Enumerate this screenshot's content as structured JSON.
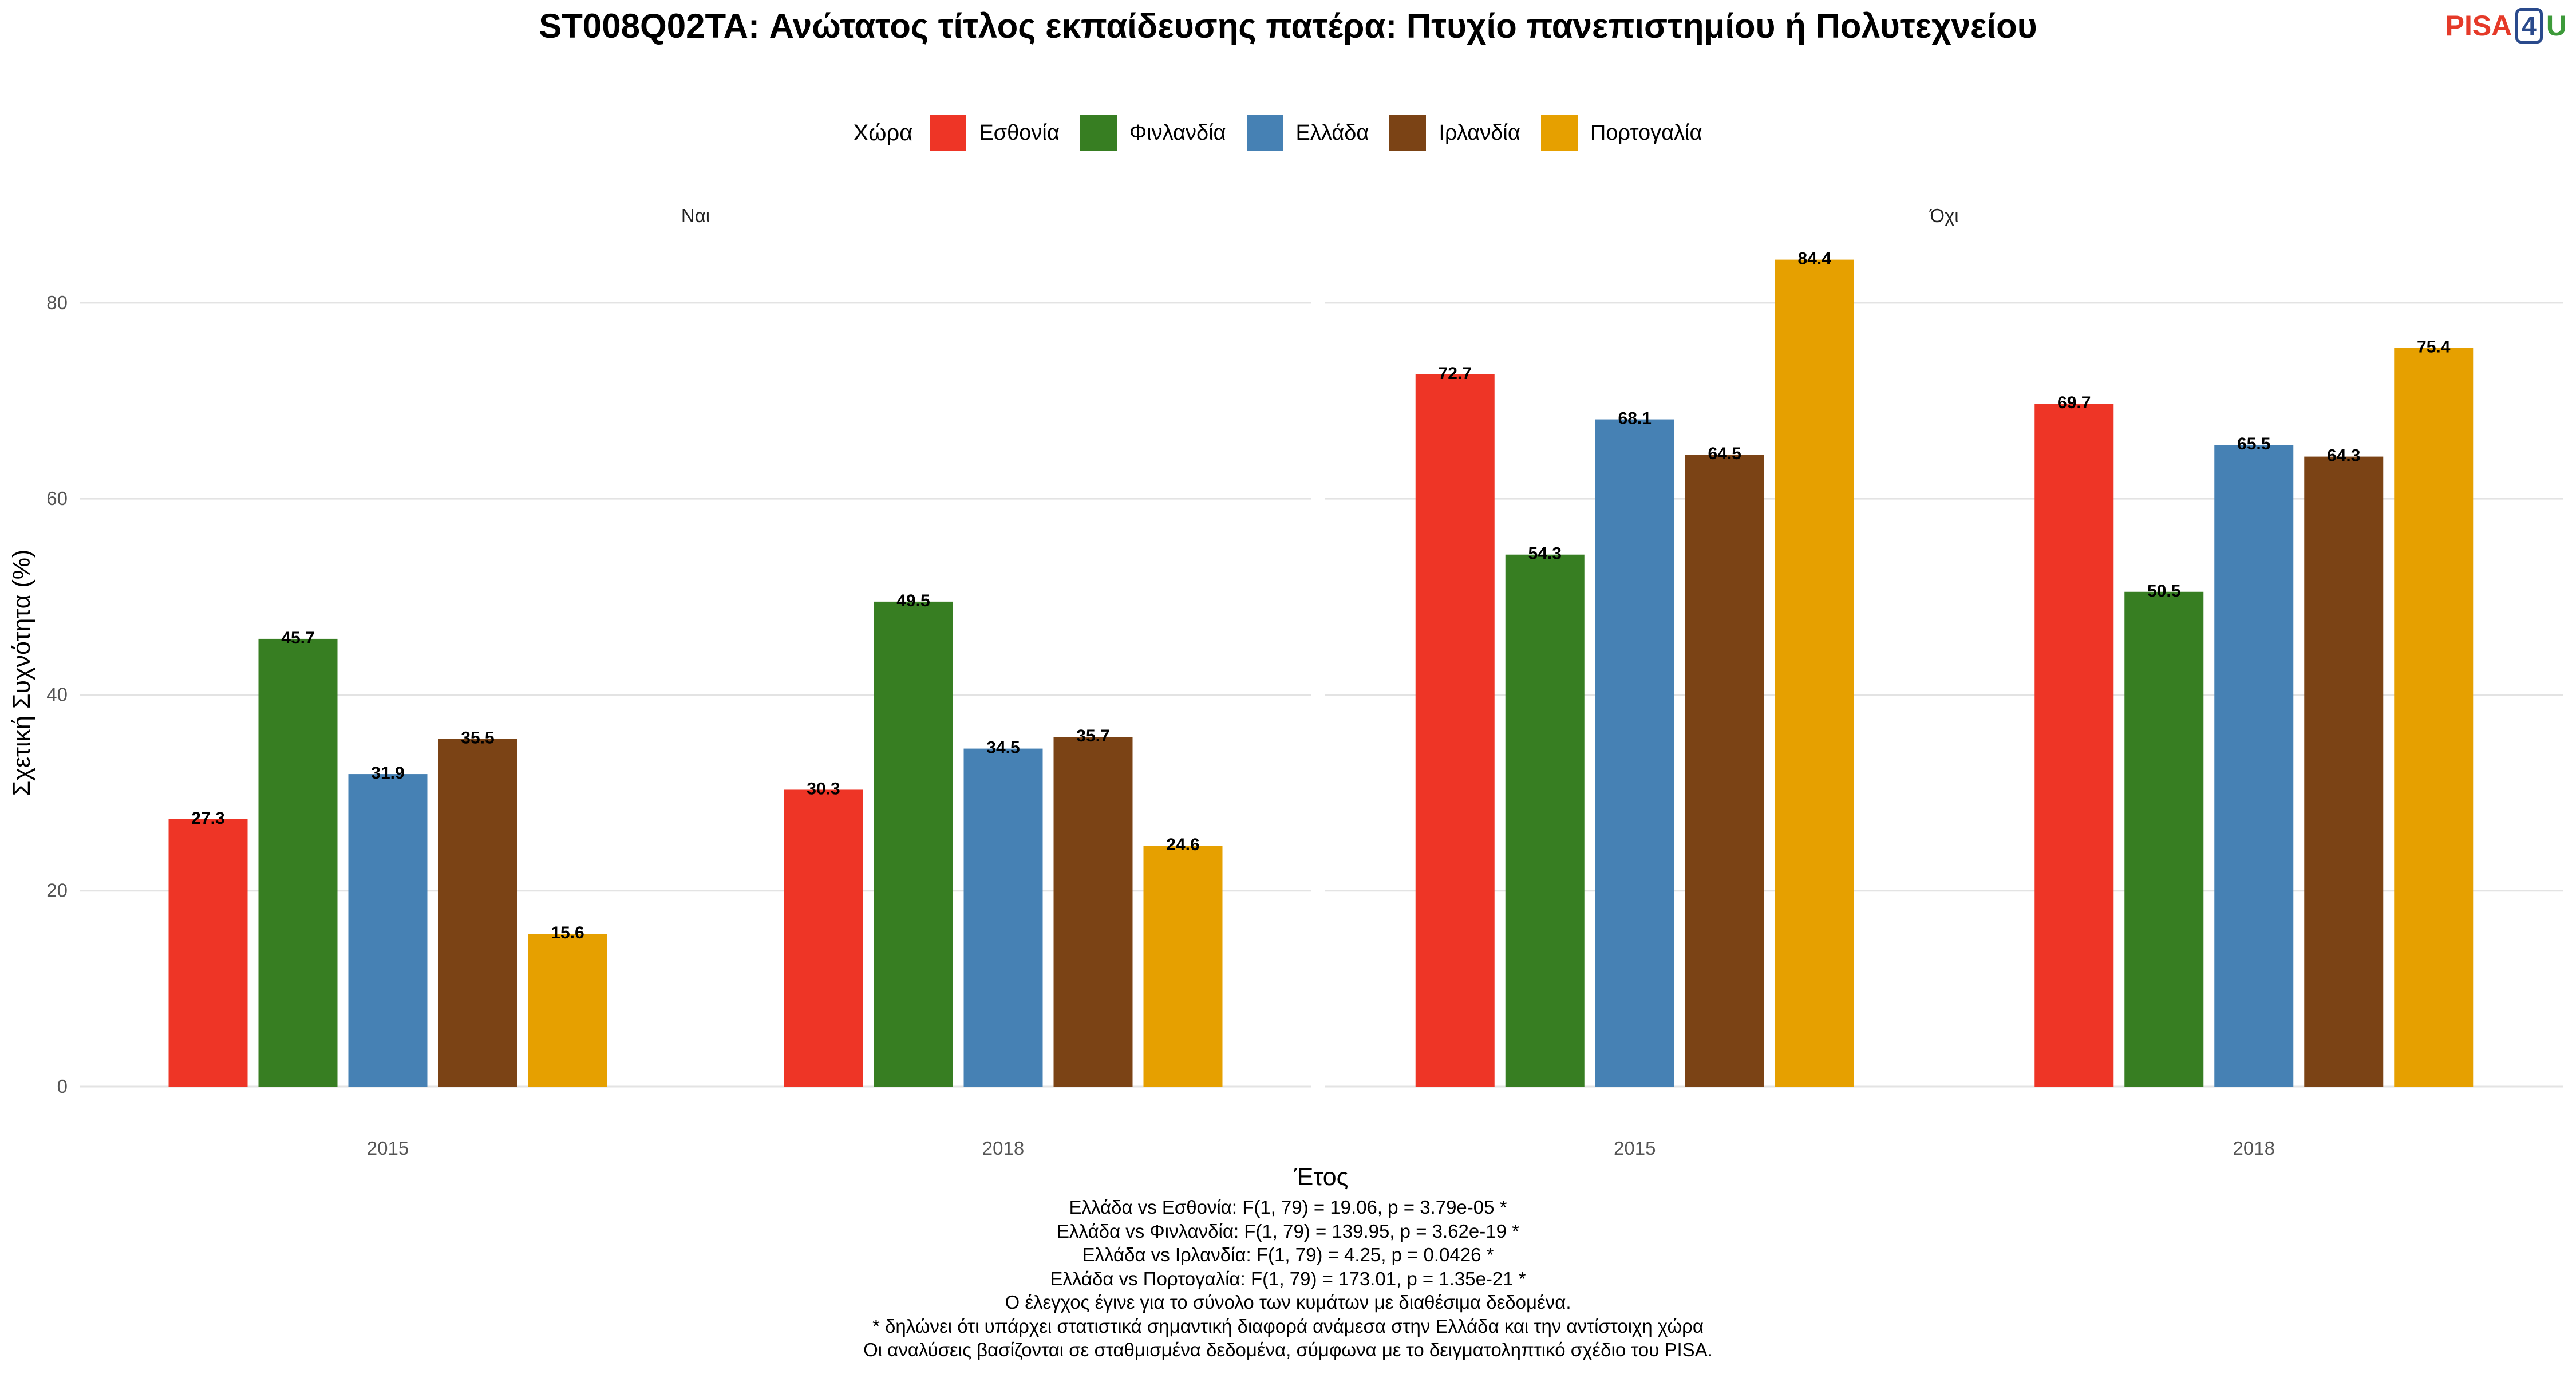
{
  "title": "ST008Q02TA: Ανώτατος τίτλος εκπαίδευσης πατέρα: Πτυχίο πανεπιστημίου ή Πολυτεχνείου",
  "logo": {
    "pisa": "PISA",
    "four": "4",
    "u": "U"
  },
  "legend": {
    "title": "Χώρα",
    "items": [
      {
        "label": "Εσθονία",
        "color": "#EE3526"
      },
      {
        "label": "Φινλανδία",
        "color": "#377E22"
      },
      {
        "label": "Ελλάδα",
        "color": "#4681B4"
      },
      {
        "label": "Ιρλανδία",
        "color": "#7B4315"
      },
      {
        "label": "Πορτογαλία",
        "color": "#E6A000"
      }
    ]
  },
  "chart_data": {
    "type": "bar",
    "xlabel": "Έτος",
    "ylabel": "Σχετική Συχνότητα (%)",
    "ylim": [
      0,
      88
    ],
    "yticks": [
      0,
      20,
      40,
      60,
      80
    ],
    "grid": true,
    "legend_position": "top",
    "categories": [
      "2015",
      "2018"
    ],
    "panels": [
      {
        "label": "Ναι",
        "series": [
          {
            "name": "Εσθονία",
            "values": [
              27.3,
              30.3
            ]
          },
          {
            "name": "Φινλανδία",
            "values": [
              45.7,
              49.5
            ]
          },
          {
            "name": "Ελλάδα",
            "values": [
              31.9,
              34.5
            ]
          },
          {
            "name": "Ιρλανδία",
            "values": [
              35.5,
              35.7
            ]
          },
          {
            "name": "Πορτογαλία",
            "values": [
              15.6,
              24.6
            ]
          }
        ]
      },
      {
        "label": "Όχι",
        "series": [
          {
            "name": "Εσθονία",
            "values": [
              72.7,
              69.7
            ]
          },
          {
            "name": "Φινλανδία",
            "values": [
              54.3,
              50.5
            ]
          },
          {
            "name": "Ελλάδα",
            "values": [
              68.1,
              65.5
            ]
          },
          {
            "name": "Ιρλανδία",
            "values": [
              64.5,
              64.3
            ]
          },
          {
            "name": "Πορτογαλία",
            "values": [
              84.4,
              75.4
            ]
          }
        ]
      }
    ]
  },
  "footnotes": [
    "Ελλάδα vs Εσθονία: F(1, 79) = 19.06, p = 3.79e-05 *",
    "Ελλάδα vs Φινλανδία: F(1, 79) = 139.95, p = 3.62e-19 *",
    "Ελλάδα vs Ιρλανδία: F(1, 79) = 4.25, p = 0.0426 *",
    "Ελλάδα vs Πορτογαλία: F(1, 79) = 173.01, p = 1.35e-21 *",
    "Ο έλεγχος έγινε για το σύνολο των κυμάτων με διαθέσιμα δεδομένα.",
    "* δηλώνει ότι υπάρχει στατιστικά σημαντική διαφορά ανάμεσα στην Ελλάδα και την αντίστοιχη χώρα",
    "Οι αναλύσεις βασίζονται σε σταθμισμένα δεδομένα, σύμφωνα με το δειγματοληπτικό σχέδιο του PISA."
  ]
}
